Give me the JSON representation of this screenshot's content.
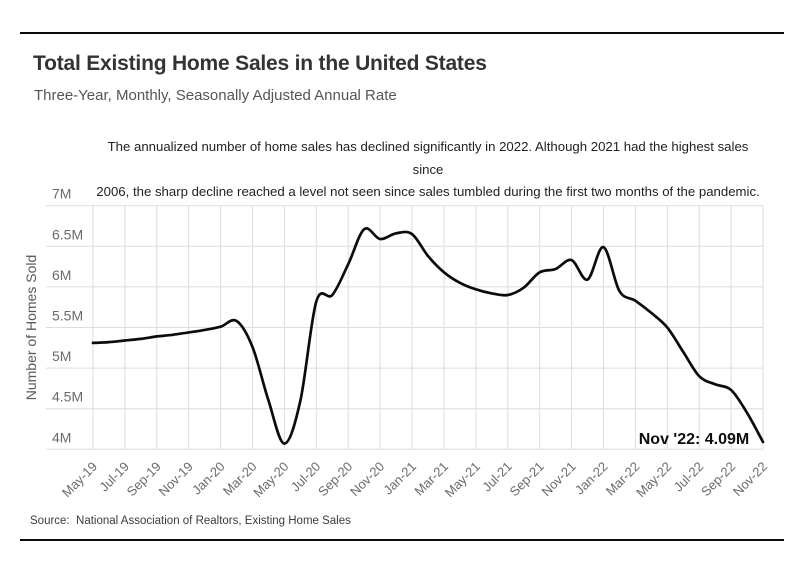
{
  "header": {
    "title": "Total Existing Home Sales in the United States",
    "subtitle": "Three-Year, Monthly, Seasonally Adjusted Annual Rate"
  },
  "annotation": {
    "lines": [
      "The annualized number of home sales has declined significantly in 2022. Although 2021 had the highest sales since",
      "2006, the sharp decline reached a level not seen since sales tumbled during the first two months of the pandemic."
    ]
  },
  "source": {
    "text": "Source:  National Association of Realtors, Existing Home Sales"
  },
  "chart_data": {
    "type": "line",
    "title": "Total Existing Home Sales in the United States",
    "subtitle": "Three-Year, Monthly, Seasonally Adjusted Annual Rate",
    "xlabel": "",
    "ylabel": "Number of Homes Sold",
    "ylim": [
      4,
      7
    ],
    "grid": true,
    "legend_position": "none",
    "line_color": "#0c0c0c",
    "grid_color": "#dcdcdc",
    "x": [
      "May-19",
      "Jun-19",
      "Jul-19",
      "Aug-19",
      "Sep-19",
      "Oct-19",
      "Nov-19",
      "Dec-19",
      "Jan-20",
      "Feb-20",
      "Mar-20",
      "Apr-20",
      "May-20",
      "Jun-20",
      "Jul-20",
      "Aug-20",
      "Sep-20",
      "Oct-20",
      "Nov-20",
      "Dec-20",
      "Jan-21",
      "Feb-21",
      "Mar-21",
      "Apr-21",
      "May-21",
      "Jun-21",
      "Jul-21",
      "Aug-21",
      "Sep-21",
      "Oct-21",
      "Nov-21",
      "Dec-21",
      "Jan-22",
      "Feb-22",
      "Mar-22",
      "Apr-22",
      "May-22",
      "Jun-22",
      "Jul-22",
      "Aug-22",
      "Sep-22",
      "Oct-22",
      "Nov-22"
    ],
    "values": [
      5.31,
      5.32,
      5.34,
      5.36,
      5.39,
      5.41,
      5.44,
      5.47,
      5.51,
      5.58,
      5.26,
      4.6,
      4.07,
      4.6,
      5.82,
      5.9,
      6.28,
      6.71,
      6.59,
      6.66,
      6.65,
      6.38,
      6.18,
      6.05,
      5.97,
      5.92,
      5.9,
      5.99,
      6.18,
      6.22,
      6.33,
      6.09,
      6.49,
      5.95,
      5.83,
      5.68,
      5.5,
      5.2,
      4.9,
      4.8,
      4.73,
      4.45,
      4.09
    ],
    "x_tick_labels": [
      "May-19",
      "Jul-19",
      "Sep-19",
      "Nov-19",
      "Jan-20",
      "Mar-20",
      "May-20",
      "Jul-20",
      "Sep-20",
      "Nov-20",
      "Jan-21",
      "Mar-21",
      "May-21",
      "Jul-21",
      "Sep-21",
      "Nov-21",
      "Jan-22",
      "Mar-22",
      "May-22",
      "Jul-22",
      "Sep-22",
      "Nov-22"
    ],
    "y_ticks": [
      7,
      6.5,
      6,
      5.5,
      5,
      4.5,
      4
    ],
    "y_tick_labels": [
      "7M",
      "6.5M",
      "6M",
      "5.5M",
      "5M",
      "4.5M",
      "4M"
    ],
    "end_label": "Nov '22: 4.09M"
  }
}
